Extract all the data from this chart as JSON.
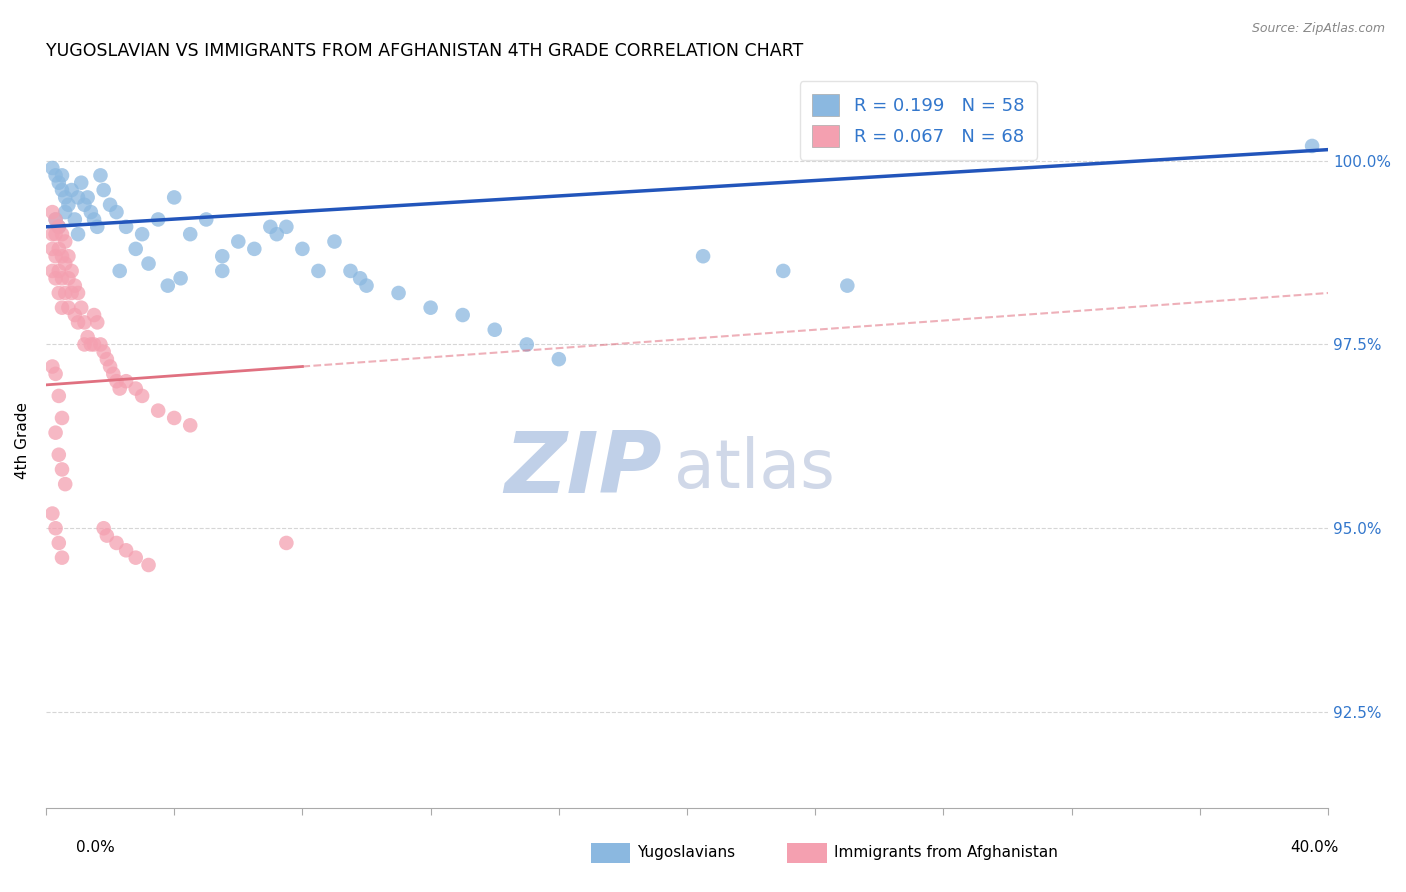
{
  "title": "YUGOSLAVIAN VS IMMIGRANTS FROM AFGHANISTAN 4TH GRADE CORRELATION CHART",
  "source": "Source: ZipAtlas.com",
  "ylabel": "4th Grade",
  "yticks": [
    92.5,
    95.0,
    97.5,
    100.0
  ],
  "ytick_labels": [
    "92.5%",
    "95.0%",
    "97.5%",
    "100.0%"
  ],
  "xlim": [
    0.0,
    40.0
  ],
  "ylim": [
    91.2,
    101.2
  ],
  "r_blue": 0.199,
  "n_blue": 58,
  "r_pink": 0.067,
  "n_pink": 68,
  "blue_color": "#8BB8E0",
  "pink_color": "#F4A0B0",
  "line_blue": "#2255BB",
  "line_pink": "#E07080",
  "watermark_zip": "ZIP",
  "watermark_atlas": "atlas",
  "watermark_color_zip": "#C0D0E8",
  "watermark_color_atlas": "#D0D8E8",
  "legend_blue_label": "Yugoslavians",
  "legend_pink_label": "Immigrants from Afghanistan",
  "blue_line_x0": 0.0,
  "blue_line_x1": 40.0,
  "blue_line_y0": 99.1,
  "blue_line_y1": 100.15,
  "pink_line_x0": 0.0,
  "pink_line_x1": 40.0,
  "pink_line_y0": 96.95,
  "pink_line_y1": 98.2,
  "pink_solid_end_x": 8.0,
  "blue_scatter_x": [
    0.3,
    0.4,
    0.5,
    0.5,
    0.6,
    0.6,
    0.7,
    0.8,
    0.9,
    1.0,
    1.0,
    1.1,
    1.2,
    1.3,
    1.4,
    1.5,
    1.6,
    1.7,
    1.8,
    2.0,
    2.2,
    2.3,
    2.5,
    2.8,
    3.0,
    3.2,
    3.5,
    3.8,
    4.0,
    4.2,
    4.5,
    5.0,
    5.5,
    5.5,
    6.0,
    6.5,
    7.0,
    7.2,
    7.5,
    8.0,
    8.5,
    9.0,
    9.5,
    9.8,
    10.0,
    11.0,
    12.0,
    13.0,
    14.0,
    15.0,
    16.0,
    20.5,
    23.0,
    25.0,
    0.2,
    0.4,
    0.3,
    39.5
  ],
  "blue_scatter_y": [
    99.8,
    99.7,
    99.8,
    99.6,
    99.5,
    99.3,
    99.4,
    99.6,
    99.2,
    99.5,
    99.0,
    99.7,
    99.4,
    99.5,
    99.3,
    99.2,
    99.1,
    99.8,
    99.6,
    99.4,
    99.3,
    98.5,
    99.1,
    98.8,
    99.0,
    98.6,
    99.2,
    98.3,
    99.5,
    98.4,
    99.0,
    99.2,
    98.5,
    98.7,
    98.9,
    98.8,
    99.1,
    99.0,
    99.1,
    98.8,
    98.5,
    98.9,
    98.5,
    98.4,
    98.3,
    98.2,
    98.0,
    97.9,
    97.7,
    97.5,
    97.3,
    98.7,
    98.5,
    98.3,
    99.9,
    99.1,
    99.2,
    100.2
  ],
  "pink_scatter_x": [
    0.2,
    0.2,
    0.2,
    0.2,
    0.3,
    0.3,
    0.3,
    0.3,
    0.4,
    0.4,
    0.4,
    0.4,
    0.5,
    0.5,
    0.5,
    0.5,
    0.6,
    0.6,
    0.6,
    0.7,
    0.7,
    0.7,
    0.8,
    0.8,
    0.9,
    0.9,
    1.0,
    1.0,
    1.1,
    1.2,
    1.2,
    1.3,
    1.4,
    1.5,
    1.5,
    1.6,
    1.7,
    1.8,
    1.9,
    2.0,
    2.1,
    2.2,
    2.3,
    2.5,
    2.8,
    3.0,
    3.5,
    4.0,
    4.5,
    0.2,
    0.3,
    0.4,
    0.5,
    7.5,
    0.3,
    0.4,
    0.5,
    0.6,
    0.2,
    0.3,
    0.4,
    0.5,
    1.8,
    1.9,
    2.2,
    2.5,
    2.8,
    3.2
  ],
  "pink_scatter_y": [
    99.3,
    99.0,
    98.8,
    98.5,
    99.2,
    99.0,
    98.7,
    98.4,
    99.1,
    98.8,
    98.5,
    98.2,
    99.0,
    98.7,
    98.4,
    98.0,
    98.9,
    98.6,
    98.2,
    98.7,
    98.4,
    98.0,
    98.5,
    98.2,
    98.3,
    97.9,
    98.2,
    97.8,
    98.0,
    97.8,
    97.5,
    97.6,
    97.5,
    97.9,
    97.5,
    97.8,
    97.5,
    97.4,
    97.3,
    97.2,
    97.1,
    97.0,
    96.9,
    97.0,
    96.9,
    96.8,
    96.6,
    96.5,
    96.4,
    97.2,
    97.1,
    96.8,
    96.5,
    94.8,
    96.3,
    96.0,
    95.8,
    95.6,
    95.2,
    95.0,
    94.8,
    94.6,
    95.0,
    94.9,
    94.8,
    94.7,
    94.6,
    94.5
  ]
}
